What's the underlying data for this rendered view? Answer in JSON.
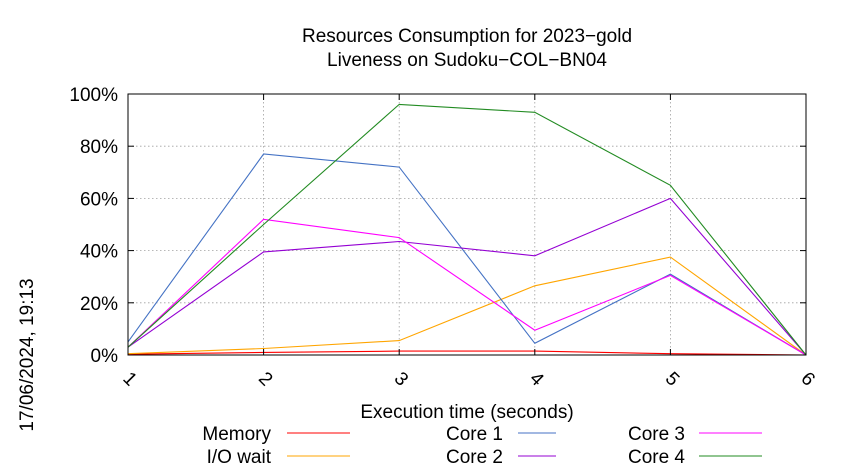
{
  "chart_data": {
    "type": "line",
    "title_lines": [
      "Resources Consumption for 2023−gold",
      "Liveness on Sudoku−COL−BN04"
    ],
    "xlabel": "Execution time (seconds)",
    "ylabel": "",
    "side_label": "17/06/2024, 19:13",
    "x": [
      1,
      2,
      3,
      4,
      5,
      6
    ],
    "x_ticks": [
      "1",
      "2",
      "3",
      "4",
      "5",
      "6"
    ],
    "xlim": [
      1,
      6
    ],
    "ylim": [
      0,
      100
    ],
    "y_ticks": [
      "0%",
      "20%",
      "40%",
      "60%",
      "80%",
      "100%"
    ],
    "y_tick_values": [
      0,
      20,
      40,
      60,
      80,
      100
    ],
    "grid": true,
    "legend_position": "bottom",
    "series": [
      {
        "name": "Memory",
        "color": "#ff0000",
        "values": [
          0.3,
          1.0,
          1.5,
          1.5,
          0.5,
          0
        ]
      },
      {
        "name": "I/O wait",
        "color": "#ffa500",
        "values": [
          0.5,
          2.5,
          5.5,
          26.5,
          37.5,
          0
        ]
      },
      {
        "name": "Core 1",
        "color": "#4472c4",
        "values": [
          5,
          77,
          72,
          4.5,
          31,
          0
        ]
      },
      {
        "name": "Core 2",
        "color": "#9400d3",
        "values": [
          3,
          39.5,
          43.5,
          38,
          60,
          0
        ]
      },
      {
        "name": "Core 3",
        "color": "#ff00ff",
        "values": [
          3,
          52,
          45,
          9.5,
          30.5,
          0
        ]
      },
      {
        "name": "Core 4",
        "color": "#228b22",
        "values": [
          3,
          50,
          96,
          93,
          65,
          0
        ]
      }
    ]
  }
}
